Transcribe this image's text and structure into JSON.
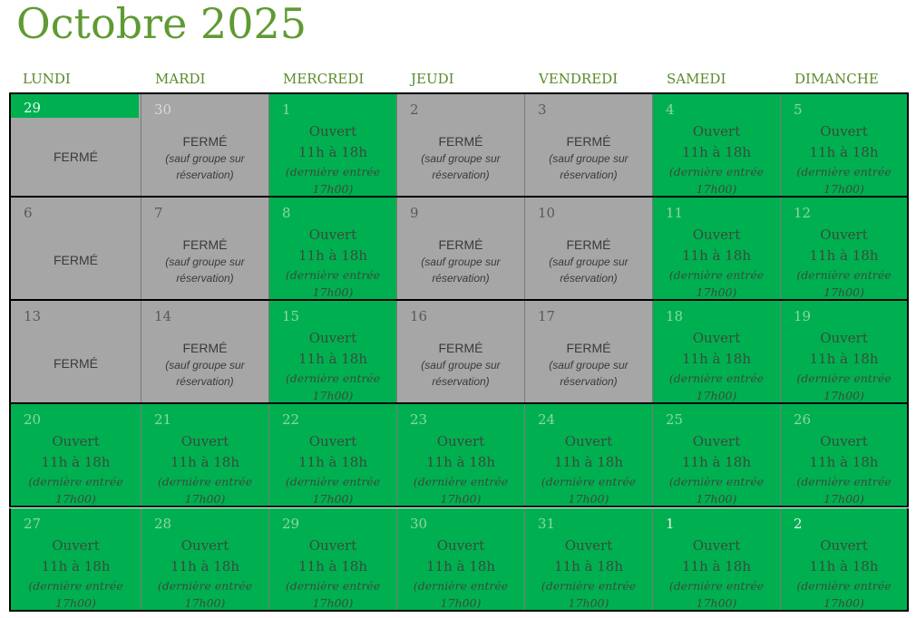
{
  "title": "Octobre 2025",
  "days_of_week": [
    "LUNDI",
    "MARDI",
    "MERCREDI",
    "JEUDI",
    "VENDREDI",
    "SAMEDI",
    "DIMANCHE"
  ],
  "labels": {
    "open": "Ouvert",
    "hours": "11h à 18h",
    "last_entry_line1": "(dernière entrée",
    "last_entry_line2": "17h00)",
    "closed": "FERMÉ",
    "closed_note_line1": "(sauf groupe sur",
    "closed_note_line2": "réservation)"
  },
  "colors": {
    "open": "#00b050",
    "closed": "#a6a6a6",
    "title": "#5f9a32"
  },
  "weeks": [
    [
      {
        "day": "29",
        "status": "closed",
        "other_month": true
      },
      {
        "day": "30",
        "status": "closed_group",
        "other_month": true
      },
      {
        "day": "1",
        "status": "open"
      },
      {
        "day": "2",
        "status": "closed_group"
      },
      {
        "day": "3",
        "status": "closed_group"
      },
      {
        "day": "4",
        "status": "open"
      },
      {
        "day": "5",
        "status": "open"
      }
    ],
    [
      {
        "day": "6",
        "status": "closed"
      },
      {
        "day": "7",
        "status": "closed_group"
      },
      {
        "day": "8",
        "status": "open"
      },
      {
        "day": "9",
        "status": "closed_group"
      },
      {
        "day": "10",
        "status": "closed_group"
      },
      {
        "day": "11",
        "status": "open"
      },
      {
        "day": "12",
        "status": "open"
      }
    ],
    [
      {
        "day": "13",
        "status": "closed"
      },
      {
        "day": "14",
        "status": "closed_group"
      },
      {
        "day": "15",
        "status": "open"
      },
      {
        "day": "16",
        "status": "closed_group"
      },
      {
        "day": "17",
        "status": "closed_group"
      },
      {
        "day": "18",
        "status": "open"
      },
      {
        "day": "19",
        "status": "open"
      }
    ],
    [
      {
        "day": "20",
        "status": "open"
      },
      {
        "day": "21",
        "status": "open"
      },
      {
        "day": "22",
        "status": "open"
      },
      {
        "day": "23",
        "status": "open"
      },
      {
        "day": "24",
        "status": "open"
      },
      {
        "day": "25",
        "status": "open"
      },
      {
        "day": "26",
        "status": "open"
      }
    ],
    [
      {
        "day": "27",
        "status": "open"
      },
      {
        "day": "28",
        "status": "open"
      },
      {
        "day": "29",
        "status": "open"
      },
      {
        "day": "30",
        "status": "open"
      },
      {
        "day": "31",
        "status": "open"
      },
      {
        "day": "1",
        "status": "open",
        "other_month": true
      },
      {
        "day": "2",
        "status": "open",
        "other_month": true
      }
    ]
  ]
}
